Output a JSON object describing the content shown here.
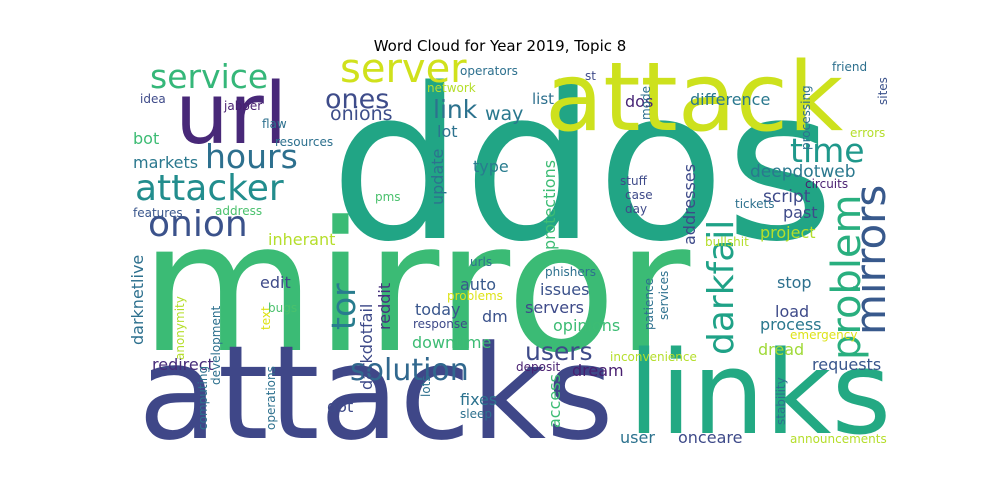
{
  "chart_data": {
    "type": "wordcloud",
    "title": "Word Cloud for Year 2019, Topic 8",
    "background": "#ffffff",
    "colormap": "viridis",
    "words": [
      {
        "text": "ddos",
        "weight": 1.0,
        "color": "#21a585"
      },
      {
        "text": "mirror",
        "weight": 0.97,
        "color": "#3bbb75"
      },
      {
        "text": "attacks",
        "weight": 0.7,
        "color": "#3f4788"
      },
      {
        "text": "links",
        "weight": 0.58,
        "color": "#23a983"
      },
      {
        "text": "attack",
        "weight": 0.52,
        "color": "#cde11d"
      },
      {
        "text": "url",
        "weight": 0.46,
        "color": "#482878"
      },
      {
        "text": "mirrors",
        "weight": 0.26,
        "color": "#38598c"
      },
      {
        "text": "problem",
        "weight": 0.26,
        "color": "#29af7f"
      },
      {
        "text": "server",
        "weight": 0.22,
        "color": "#d0e11c"
      },
      {
        "text": "darkfail",
        "weight": 0.2,
        "color": "#1fa287"
      },
      {
        "text": "attacker",
        "weight": 0.21,
        "color": "#228d8d"
      },
      {
        "text": "onion",
        "weight": 0.21,
        "color": "#3b528b"
      },
      {
        "text": "service",
        "weight": 0.19,
        "color": "#35b779"
      },
      {
        "text": "hours",
        "weight": 0.19,
        "color": "#2d708e"
      },
      {
        "text": "time",
        "weight": 0.19,
        "color": "#1f988b"
      },
      {
        "text": "tor",
        "weight": 0.18,
        "color": "#287c8e"
      },
      {
        "text": "solution",
        "weight": 0.15,
        "color": "#31688e"
      },
      {
        "text": "users",
        "weight": 0.14,
        "color": "#3e4a89"
      },
      {
        "text": "ones",
        "weight": 0.13,
        "color": "#3e4c8a"
      },
      {
        "text": "link",
        "weight": 0.12,
        "color": "#2c728e"
      },
      {
        "text": "onions",
        "weight": 0.09,
        "color": "#3d4e8a"
      },
      {
        "text": "difference",
        "weight": 0.08,
        "color": "#2a788e"
      },
      {
        "text": "deepdotweb",
        "weight": 0.08,
        "color": "#2a788e"
      },
      {
        "text": "script",
        "weight": 0.08,
        "color": "#3e4a89"
      },
      {
        "text": "dos",
        "weight": 0.07,
        "color": "#482677"
      },
      {
        "text": "way",
        "weight": 0.07,
        "color": "#2a788e"
      },
      {
        "text": "list",
        "weight": 0.07,
        "color": "#2d708e"
      },
      {
        "text": "lot",
        "weight": 0.07,
        "color": "#2c728e"
      },
      {
        "text": "type",
        "weight": 0.07,
        "color": "#287c8e"
      },
      {
        "text": "update",
        "weight": 0.07,
        "color": "#2c728e"
      },
      {
        "text": "addresses",
        "weight": 0.07,
        "color": "#3e4a89"
      },
      {
        "text": "protections",
        "weight": 0.07,
        "color": "#3dbc74"
      },
      {
        "text": "past",
        "weight": 0.07,
        "color": "#3e4a89"
      },
      {
        "text": "project",
        "weight": 0.07,
        "color": "#b5de2b"
      },
      {
        "text": "stop",
        "weight": 0.07,
        "color": "#2d708e"
      },
      {
        "text": "load",
        "weight": 0.07,
        "color": "#3e4a89"
      },
      {
        "text": "process",
        "weight": 0.07,
        "color": "#2a788e"
      },
      {
        "text": "dread",
        "weight": 0.07,
        "color": "#a0da39"
      },
      {
        "text": "requests",
        "weight": 0.07,
        "color": "#39568c"
      },
      {
        "text": "dream",
        "weight": 0.07,
        "color": "#481f70"
      },
      {
        "text": "opinions",
        "weight": 0.07,
        "color": "#3dbc74"
      },
      {
        "text": "servers",
        "weight": 0.07,
        "color": "#3e4a89"
      },
      {
        "text": "issues",
        "weight": 0.07,
        "color": "#3b528b"
      },
      {
        "text": "auto",
        "weight": 0.07,
        "color": "#38598c"
      },
      {
        "text": "today",
        "weight": 0.07,
        "color": "#39568c"
      },
      {
        "text": "dm",
        "weight": 0.07,
        "color": "#3b528b"
      },
      {
        "text": "downtime",
        "weight": 0.07,
        "color": "#3dbc74"
      },
      {
        "text": "reddit",
        "weight": 0.07,
        "color": "#46327e"
      },
      {
        "text": "darkdotfail",
        "weight": 0.07,
        "color": "#3e4a89"
      },
      {
        "text": "inherant",
        "weight": 0.07,
        "color": "#b5de2b"
      },
      {
        "text": "edit",
        "weight": 0.07,
        "color": "#3e4a89"
      },
      {
        "text": "redirect",
        "weight": 0.07,
        "color": "#472c7a"
      },
      {
        "text": "dot",
        "weight": 0.07,
        "color": "#3e4a89"
      },
      {
        "text": "fixes",
        "weight": 0.07,
        "color": "#2c728e"
      },
      {
        "text": "access",
        "weight": 0.07,
        "color": "#3dbc74"
      },
      {
        "text": "user",
        "weight": 0.07,
        "color": "#2c728e"
      },
      {
        "text": "onceare",
        "weight": 0.07,
        "color": "#3e4a89"
      },
      {
        "text": "bot",
        "weight": 0.07,
        "color": "#3dbc74"
      },
      {
        "text": "markets",
        "weight": 0.07,
        "color": "#2a788e"
      },
      {
        "text": "darknetlive",
        "weight": 0.07,
        "color": "#2d708e"
      },
      {
        "text": "idea",
        "weight": 0.05,
        "color": "#3e4a89"
      },
      {
        "text": "jabber",
        "weight": 0.05,
        "color": "#481f70"
      },
      {
        "text": "flaw",
        "weight": 0.05,
        "color": "#2d708e"
      },
      {
        "text": "resources",
        "weight": 0.05,
        "color": "#2d708e"
      },
      {
        "text": "features",
        "weight": 0.05,
        "color": "#39568c"
      },
      {
        "text": "address",
        "weight": 0.05,
        "color": "#4ac16d"
      },
      {
        "text": "pms",
        "weight": 0.05,
        "color": "#4ac16d"
      },
      {
        "text": "operators",
        "weight": 0.05,
        "color": "#2d708e"
      },
      {
        "text": "network",
        "weight": 0.05,
        "color": "#b5de2b"
      },
      {
        "text": "st",
        "weight": 0.05,
        "color": "#3e4a89"
      },
      {
        "text": "mode",
        "weight": 0.05,
        "color": "#2d708e"
      },
      {
        "text": "friend",
        "weight": 0.05,
        "color": "#2d708e"
      },
      {
        "text": "sites",
        "weight": 0.05,
        "color": "#3b528b"
      },
      {
        "text": "processing",
        "weight": 0.05,
        "color": "#2d708e"
      },
      {
        "text": "errors",
        "weight": 0.05,
        "color": "#b5de2b"
      },
      {
        "text": "circuits",
        "weight": 0.05,
        "color": "#481f70"
      },
      {
        "text": "tickets",
        "weight": 0.05,
        "color": "#2d708e"
      },
      {
        "text": "stuff",
        "weight": 0.05,
        "color": "#3e4a89"
      },
      {
        "text": "case",
        "weight": 0.05,
        "color": "#3e4a89"
      },
      {
        "text": "day",
        "weight": 0.05,
        "color": "#3e4a89"
      },
      {
        "text": "bullshit",
        "weight": 0.05,
        "color": "#b5de2b"
      },
      {
        "text": "urls",
        "weight": 0.05,
        "color": "#2d708e"
      },
      {
        "text": "phishers",
        "weight": 0.05,
        "color": "#2d708e"
      },
      {
        "text": "problems",
        "weight": 0.05,
        "color": "#dde318"
      },
      {
        "text": "patience",
        "weight": 0.05,
        "color": "#2d708e"
      },
      {
        "text": "services",
        "weight": 0.05,
        "color": "#2d708e"
      },
      {
        "text": "response",
        "weight": 0.05,
        "color": "#3e4a89"
      },
      {
        "text": "deposit",
        "weight": 0.05,
        "color": "#481f70"
      },
      {
        "text": "lots",
        "weight": 0.05,
        "color": "#2d708e"
      },
      {
        "text": "sleep",
        "weight": 0.05,
        "color": "#2d708e"
      },
      {
        "text": "emergency",
        "weight": 0.05,
        "color": "#dde318"
      },
      {
        "text": "inconvenience",
        "weight": 0.05,
        "color": "#b5de2b"
      },
      {
        "text": "stability",
        "weight": 0.05,
        "color": "#2d708e"
      },
      {
        "text": "announcements",
        "weight": 0.05,
        "color": "#b5de2b"
      },
      {
        "text": "anonymity",
        "weight": 0.05,
        "color": "#b5de2b"
      },
      {
        "text": "text",
        "weight": 0.05,
        "color": "#dde318"
      },
      {
        "text": "bugs",
        "weight": 0.05,
        "color": "#4ac16d"
      },
      {
        "text": "development",
        "weight": 0.05,
        "color": "#2d708e"
      },
      {
        "text": "computing",
        "weight": 0.05,
        "color": "#2d708e"
      },
      {
        "text": "operations",
        "weight": 0.05,
        "color": "#2d708e"
      }
    ]
  }
}
